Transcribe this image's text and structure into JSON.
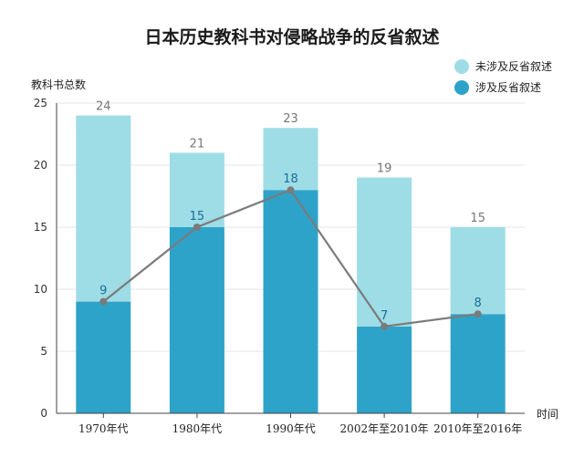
{
  "chart_data": {
    "type": "bar",
    "title": "日本历史教科书对侵略战争的反省叙述",
    "ylabel": "教科书总数",
    "xlabel": "时间",
    "categories": [
      "1970年代",
      "1980年代",
      "1990年代",
      "2002年至2010年",
      "2010年至2016年"
    ],
    "series": [
      {
        "name": "未涉及反省叙述",
        "values": [
          15,
          6,
          5,
          12,
          7
        ],
        "color": "#9edde6"
      },
      {
        "name": "涉及反省叙述",
        "values": [
          9,
          15,
          18,
          7,
          8
        ],
        "color": "#2ea3c9"
      }
    ],
    "totals": [
      24,
      21,
      23,
      19,
      15
    ],
    "line": {
      "values": [
        9,
        15,
        18,
        7,
        8
      ],
      "color": "#7b7b7b"
    },
    "ylim": [
      0,
      25
    ],
    "yticks": [
      0,
      5,
      10,
      15,
      20,
      25
    ],
    "grid": true,
    "legend_position": "top-right"
  }
}
